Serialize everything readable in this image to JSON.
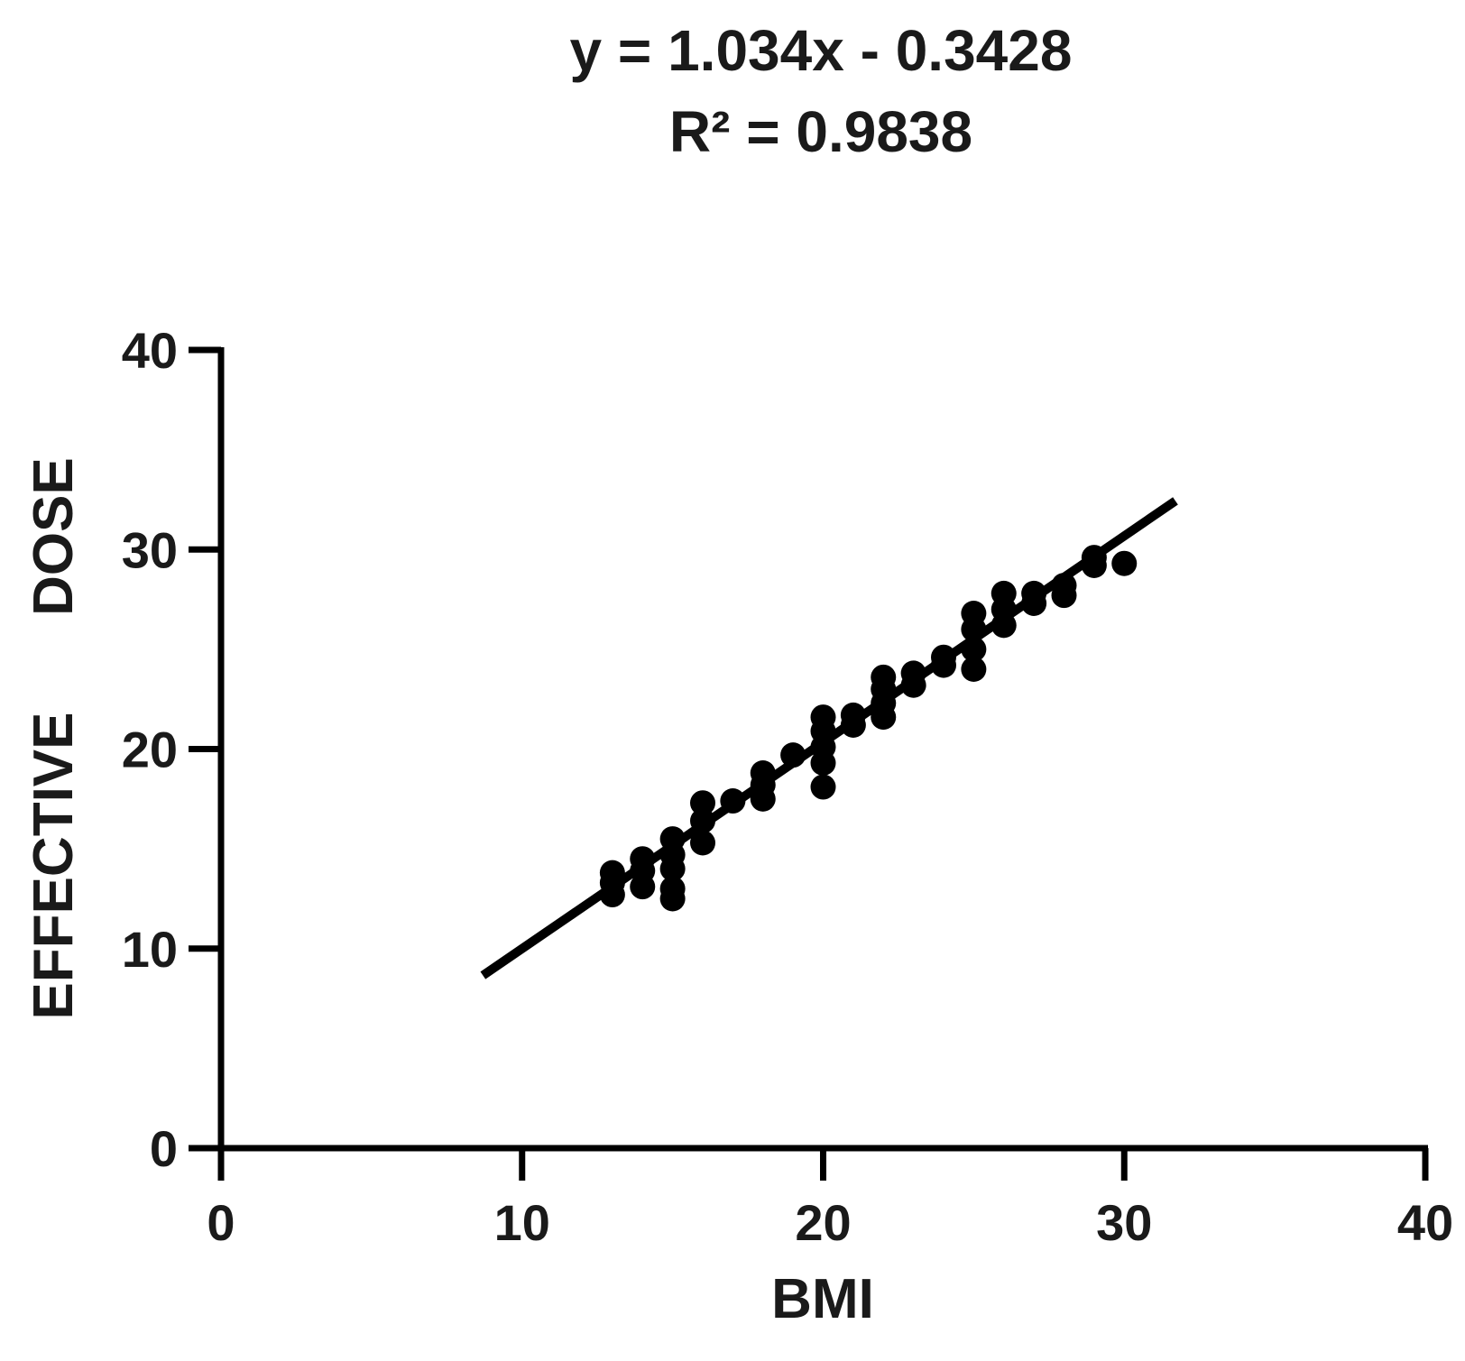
{
  "chart_data": {
    "type": "scatter",
    "title_lines": [
      "y = 1.034x - 0.3428",
      "R² = 0.9838"
    ],
    "xlabel": "BMI",
    "ylabel_words": [
      "EFFECTIVE",
      "DOSE"
    ],
    "xlim": [
      0,
      40
    ],
    "ylim": [
      0,
      40
    ],
    "xticks": [
      0,
      10,
      20,
      30,
      40
    ],
    "yticks": [
      0,
      10,
      20,
      30,
      40
    ],
    "grid": false,
    "trendline": {
      "slope": 1.034,
      "intercept": -0.3428,
      "x_range": [
        8.7,
        31.7
      ]
    },
    "series": [
      {
        "points": [
          [
            13,
            12.7
          ],
          [
            13,
            13.3
          ],
          [
            13,
            13.8
          ],
          [
            14,
            13.1
          ],
          [
            14,
            13.9
          ],
          [
            14,
            14.5
          ],
          [
            15,
            12.5
          ],
          [
            15,
            13.0
          ],
          [
            15,
            14.0
          ],
          [
            15,
            14.7
          ],
          [
            15,
            15.5
          ],
          [
            16,
            15.3
          ],
          [
            16,
            16.4
          ],
          [
            16,
            17.3
          ],
          [
            17,
            17.4
          ],
          [
            18,
            17.5
          ],
          [
            18,
            18.2
          ],
          [
            18,
            18.8
          ],
          [
            19,
            19.7
          ],
          [
            20,
            18.1
          ],
          [
            20,
            19.3
          ],
          [
            20,
            20.1
          ],
          [
            20,
            20.9
          ],
          [
            20,
            21.6
          ],
          [
            21,
            21.2
          ],
          [
            21,
            21.7
          ],
          [
            22,
            21.6
          ],
          [
            22,
            22.3
          ],
          [
            22,
            23.0
          ],
          [
            22,
            23.6
          ],
          [
            23,
            23.2
          ],
          [
            23,
            23.8
          ],
          [
            24,
            24.2
          ],
          [
            24,
            24.6
          ],
          [
            25,
            24.0
          ],
          [
            25,
            25.0
          ],
          [
            25,
            26.0
          ],
          [
            25,
            26.8
          ],
          [
            26,
            26.2
          ],
          [
            26,
            27.0
          ],
          [
            26,
            27.8
          ],
          [
            27,
            27.3
          ],
          [
            27,
            27.8
          ],
          [
            28,
            27.7
          ],
          [
            28,
            28.2
          ],
          [
            29,
            29.2
          ],
          [
            29,
            29.6
          ],
          [
            30,
            29.3
          ]
        ]
      }
    ],
    "colors": {
      "marks": "#000000",
      "text": "#1a1a1a"
    }
  }
}
